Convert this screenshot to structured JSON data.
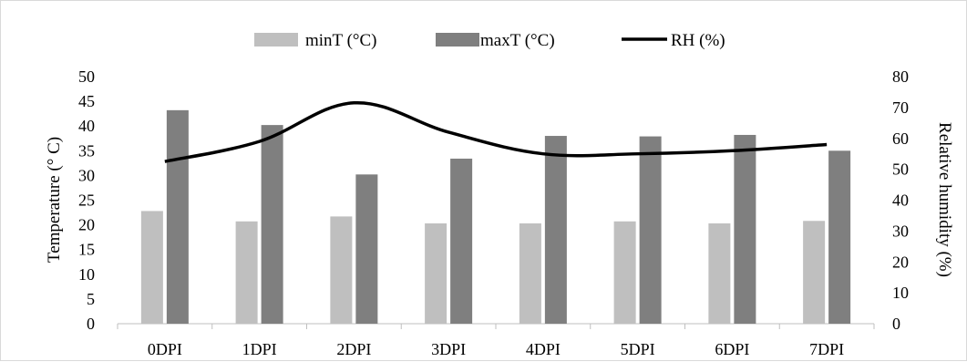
{
  "chart_data": {
    "type": "bar",
    "categories": [
      "0DPI",
      "1DPI",
      "2DPI",
      "3DPI",
      "4DPI",
      "5DPI",
      "6DPI",
      "7DPI"
    ],
    "series": [
      {
        "name": "minT (°C)",
        "type": "bar",
        "axis": "left",
        "color": "#bfbfbf",
        "values": [
          22.8,
          20.7,
          21.7,
          20.3,
          20.3,
          20.7,
          20.3,
          20.8
        ]
      },
      {
        "name": "maxT  (°C)",
        "type": "bar",
        "axis": "left",
        "color": "#7f7f7f",
        "values": [
          43.2,
          40.2,
          30.2,
          33.4,
          38.0,
          37.9,
          38.2,
          35.0
        ]
      },
      {
        "name": "RH (%)",
        "type": "line",
        "axis": "right",
        "color": "#000000",
        "values": [
          52.5,
          59,
          71.5,
          62,
          55,
          55,
          56,
          58
        ]
      }
    ],
    "ylabel": "Temperature  (° C)",
    "ylim": [
      0,
      50
    ],
    "yticks": [
      0,
      5,
      10,
      15,
      20,
      25,
      30,
      35,
      40,
      45,
      50
    ],
    "y2label": "Relative humidity (%)",
    "y2lim": [
      0,
      80
    ],
    "y2ticks": [
      0,
      10,
      20,
      30,
      40,
      50,
      60,
      70,
      80
    ],
    "legend_position": "top-center",
    "grid": false
  }
}
